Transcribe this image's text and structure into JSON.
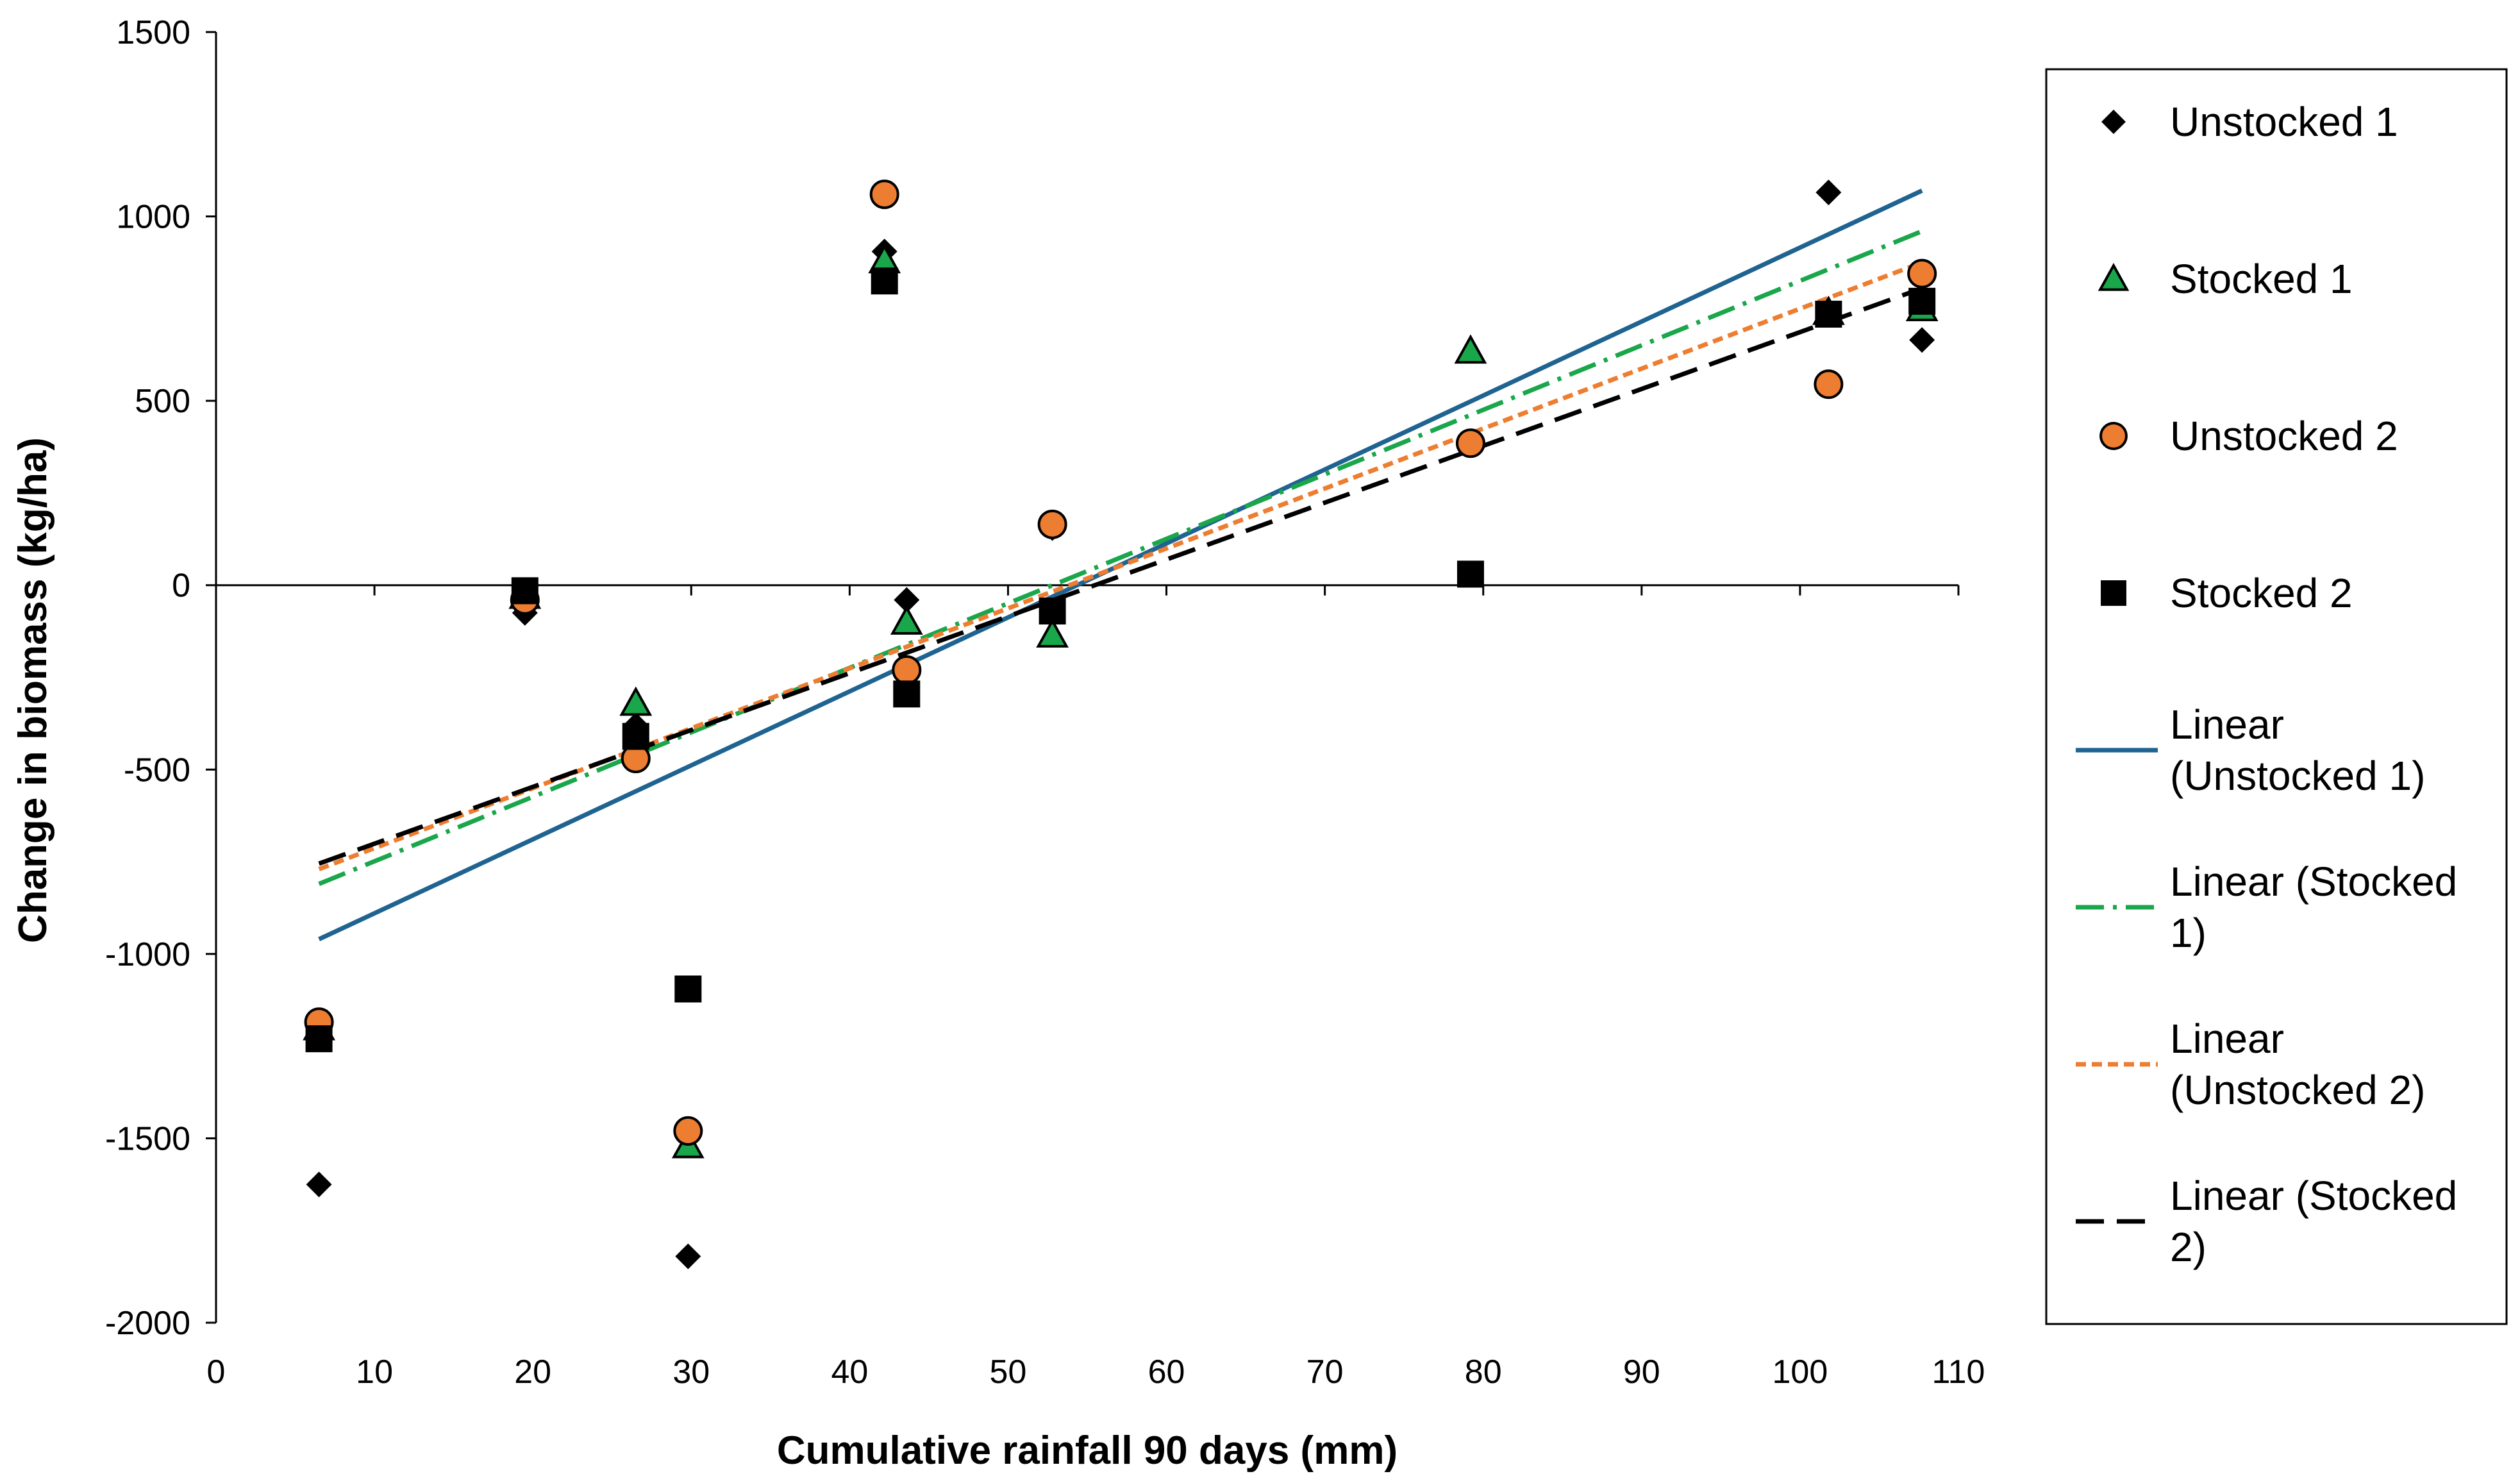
{
  "chart_data": {
    "type": "scatter",
    "title": "",
    "xlabel": "Cumulative rainfall 90 days (mm)",
    "ylabel": "Change in biomass (kg/ha)",
    "xlim": [
      0,
      110
    ],
    "ylim": [
      -2000,
      1500
    ],
    "x_ticks": [
      0,
      10,
      20,
      30,
      40,
      50,
      60,
      70,
      80,
      90,
      100,
      110
    ],
    "y_ticks": [
      -2000,
      -1500,
      -1000,
      -500,
      0,
      500,
      1000,
      1500
    ],
    "x_tick_labels": [
      "0",
      "10",
      "20",
      "30",
      "40",
      "50",
      "60",
      "70",
      "80",
      "90",
      "100",
      "110"
    ],
    "y_tick_labels": [
      "-2000",
      "-1500",
      "-1000",
      "-500",
      "0",
      "500",
      "1000",
      "1500"
    ],
    "grid": false,
    "legend_position": "right",
    "series": [
      {
        "name": "Unstocked 1",
        "marker": "diamond",
        "color": "#000000",
        "points": [
          [
            6.5,
            -1625
          ],
          [
            19.5,
            -75
          ],
          [
            26.5,
            -380
          ],
          [
            29.8,
            -1820
          ],
          [
            42.2,
            905
          ],
          [
            43.6,
            -40
          ],
          [
            52.8,
            155
          ],
          [
            79.2,
            385
          ],
          [
            101.8,
            1065
          ],
          [
            107.7,
            665
          ]
        ]
      },
      {
        "name": "Stocked 1",
        "marker": "triangle",
        "color": "#1aa64a",
        "points": [
          [
            6.5,
            -1200
          ],
          [
            19.5,
            -30
          ],
          [
            26.5,
            -320
          ],
          [
            29.8,
            -1520
          ],
          [
            42.2,
            880
          ],
          [
            43.6,
            -100
          ],
          [
            52.8,
            -135
          ],
          [
            79.2,
            635
          ],
          [
            101.8,
            740
          ],
          [
            107.7,
            750
          ]
        ]
      },
      {
        "name": "Unstocked 2",
        "marker": "circle",
        "color": "#ed7d31",
        "points": [
          [
            6.5,
            -1185
          ],
          [
            19.5,
            -40
          ],
          [
            26.5,
            -470
          ],
          [
            29.8,
            -1480
          ],
          [
            42.2,
            1060
          ],
          [
            43.6,
            -230
          ],
          [
            52.8,
            165
          ],
          [
            79.2,
            385
          ],
          [
            101.8,
            545
          ],
          [
            107.7,
            845
          ]
        ]
      },
      {
        "name": "Stocked 2",
        "marker": "square",
        "color": "#000000",
        "points": [
          [
            6.5,
            -1230
          ],
          [
            19.5,
            -15
          ],
          [
            26.5,
            -410
          ],
          [
            29.8,
            -1095
          ],
          [
            42.2,
            825
          ],
          [
            43.6,
            -295
          ],
          [
            52.8,
            -70
          ],
          [
            79.2,
            30
          ],
          [
            101.8,
            735
          ],
          [
            107.7,
            770
          ]
        ]
      }
    ],
    "trendlines": [
      {
        "name": "Linear (Unstocked 1)",
        "color": "#1f6391",
        "dash": "solid",
        "from": [
          6.5,
          -960
        ],
        "to": [
          107.7,
          1070
        ]
      },
      {
        "name": "Linear (Stocked 1)",
        "color": "#1aa64a",
        "dash": "dashdot",
        "from": [
          6.5,
          -810
        ],
        "to": [
          107.7,
          960
        ]
      },
      {
        "name": "Linear (Unstocked 2)",
        "color": "#ed7d31",
        "dash": "dotted",
        "from": [
          6.5,
          -770
        ],
        "to": [
          107.7,
          875
        ]
      },
      {
        "name": "Linear (Stocked 2)",
        "color": "#000000",
        "dash": "dashed",
        "from": [
          6.5,
          -755
        ],
        "to": [
          107.7,
          805
        ]
      }
    ],
    "legend": [
      {
        "type": "marker",
        "marker": "diamond",
        "color": "#000000",
        "label_lines": [
          "Unstocked 1"
        ]
      },
      {
        "type": "marker",
        "marker": "triangle",
        "color": "#1aa64a",
        "label_lines": [
          "Stocked 1"
        ]
      },
      {
        "type": "marker",
        "marker": "circle",
        "color": "#ed7d31",
        "label_lines": [
          "Unstocked 2"
        ]
      },
      {
        "type": "marker",
        "marker": "square",
        "color": "#000000",
        "label_lines": [
          "Stocked 2"
        ]
      },
      {
        "type": "line",
        "color": "#1f6391",
        "dash": "solid",
        "label_lines": [
          "Linear",
          "(Unstocked 1)"
        ]
      },
      {
        "type": "line",
        "color": "#1aa64a",
        "dash": "dashdot",
        "label_lines": [
          "Linear (Stocked",
          "1)"
        ]
      },
      {
        "type": "line",
        "color": "#ed7d31",
        "dash": "dotted",
        "label_lines": [
          "Linear",
          "(Unstocked 2)"
        ]
      },
      {
        "type": "line",
        "color": "#000000",
        "dash": "dashed",
        "label_lines": [
          "Linear (Stocked",
          "2)"
        ]
      }
    ]
  }
}
